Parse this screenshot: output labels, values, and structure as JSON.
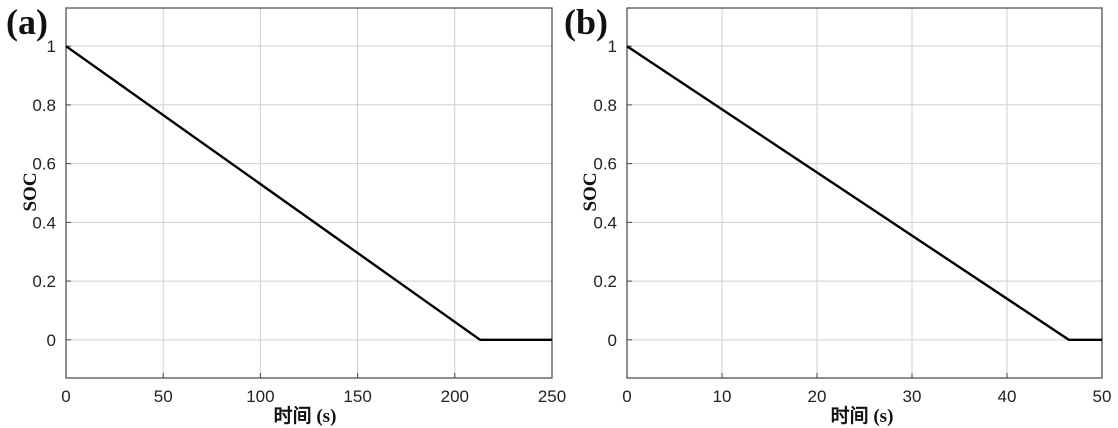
{
  "chart_data": [
    {
      "type": "line",
      "panel_label": "(a)",
      "xlabel": "时间 (s)",
      "ylabel": "SOC",
      "xlim": [
        0,
        250
      ],
      "ylim": [
        -0.13,
        1.13
      ],
      "xticks": [
        0,
        50,
        100,
        150,
        200,
        250
      ],
      "yticks": [
        0,
        0.2,
        0.4,
        0.6,
        0.8,
        1
      ],
      "xtick_labels": [
        "0",
        "50",
        "100",
        "150",
        "200",
        "250"
      ],
      "ytick_labels": [
        "0",
        "0.2",
        "0.4",
        "0.6",
        "0.8",
        "1"
      ],
      "grid": true,
      "series": [
        {
          "x": [
            0,
            213,
            250
          ],
          "y": [
            1,
            0,
            0
          ]
        }
      ]
    },
    {
      "type": "line",
      "panel_label": "(b)",
      "xlabel": "时间 (s)",
      "ylabel": "SOC",
      "xlim": [
        0,
        50
      ],
      "ylim": [
        -0.13,
        1.13
      ],
      "xticks": [
        0,
        10,
        20,
        30,
        40,
        50
      ],
      "yticks": [
        0,
        0.2,
        0.4,
        0.6,
        0.8,
        1
      ],
      "xtick_labels": [
        "0",
        "10",
        "20",
        "30",
        "40",
        "50"
      ],
      "ytick_labels": [
        "0",
        "0.2",
        "0.4",
        "0.6",
        "0.8",
        "1"
      ],
      "grid": true,
      "series": [
        {
          "x": [
            0,
            46.5,
            50
          ],
          "y": [
            1,
            0,
            0
          ]
        }
      ]
    }
  ]
}
